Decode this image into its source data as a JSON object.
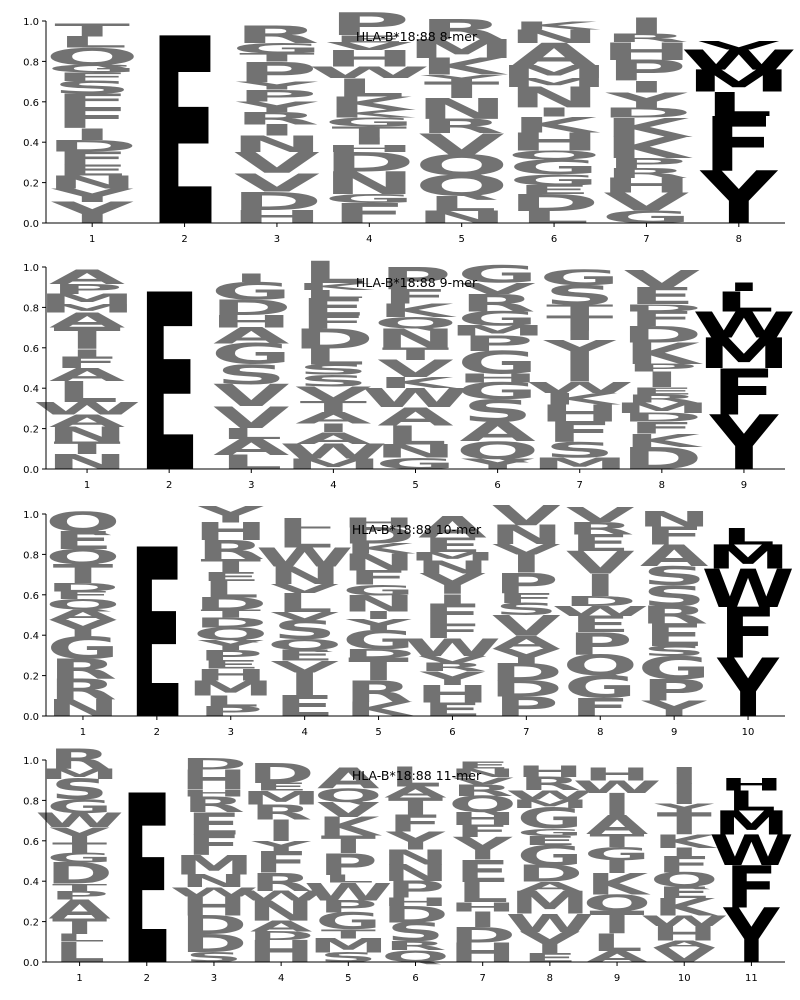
{
  "chart_data": [
    {
      "type": "sequence-logo",
      "title": "HLA-B*18:88 8-mer",
      "ylim": [
        0,
        1
      ],
      "yticks": [
        "0.0",
        "0.2",
        "0.4",
        "0.6",
        "0.8",
        "1.0"
      ],
      "positions": [
        "1",
        "2",
        "3",
        "4",
        "5",
        "6",
        "7",
        "8"
      ],
      "dominant": [
        {
          "position": 2,
          "letter": "E",
          "height": 0.93,
          "color": "#6b1f63"
        }
      ],
      "anchor": [
        {
          "letter": "Y",
          "height": 0.26,
          "color": "#b4d8d4"
        },
        {
          "letter": "F",
          "height": 0.27,
          "color": "#c3d3e6"
        },
        {
          "letter": "L",
          "height": 0.12,
          "color": "#d7e1ee"
        },
        {
          "letter": "M",
          "height": 0.11,
          "color": "#dfe6f1"
        },
        {
          "letter": "W",
          "height": 0.1,
          "color": "#e3e9f3"
        },
        {
          "letter": "V",
          "height": 0.04,
          "color": "#eef2f7"
        }
      ]
    },
    {
      "type": "sequence-logo",
      "title": "HLA-B*18:88 9-mer",
      "ylim": [
        0,
        1
      ],
      "yticks": [
        "0.0",
        "0.2",
        "0.4",
        "0.6",
        "0.8",
        "1.0"
      ],
      "positions": [
        "1",
        "2",
        "3",
        "4",
        "5",
        "6",
        "7",
        "8",
        "9"
      ],
      "dominant": [
        {
          "position": 2,
          "letter": "E",
          "height": 0.88,
          "color": "#6f2d6b"
        }
      ],
      "anchor": [
        {
          "letter": "Y",
          "height": 0.27,
          "color": "#b4d8d4"
        },
        {
          "letter": "F",
          "height": 0.23,
          "color": "#c6d5e8"
        },
        {
          "letter": "M",
          "height": 0.15,
          "color": "#d8e2ef"
        },
        {
          "letter": "W",
          "height": 0.13,
          "color": "#dde5f1"
        },
        {
          "letter": "L",
          "height": 0.1,
          "color": "#e3e9f3"
        },
        {
          "letter": "I",
          "height": 0.04,
          "color": "#eef2f7"
        }
      ]
    },
    {
      "type": "sequence-logo",
      "title": "HLA-B*18:88 10-mer",
      "ylim": [
        0,
        1
      ],
      "yticks": [
        "0.0",
        "0.2",
        "0.4",
        "0.6",
        "0.8",
        "1.0"
      ],
      "positions": [
        "1",
        "2",
        "3",
        "4",
        "5",
        "6",
        "7",
        "8",
        "9",
        "10"
      ],
      "dominant": [
        {
          "position": 2,
          "letter": "E",
          "height": 0.84,
          "color": "#702f6c"
        }
      ],
      "anchor": [
        {
          "letter": "Y",
          "height": 0.29,
          "color": "#b4d8d4"
        },
        {
          "letter": "F",
          "height": 0.25,
          "color": "#c6d5e8"
        },
        {
          "letter": "W",
          "height": 0.19,
          "color": "#d8e2ef"
        },
        {
          "letter": "M",
          "height": 0.12,
          "color": "#e0e7f2"
        },
        {
          "letter": "L",
          "height": 0.08,
          "color": "#e6ecf4"
        }
      ]
    },
    {
      "type": "sequence-logo",
      "title": "HLA-B*18:88 11-mer",
      "ylim": [
        0,
        1
      ],
      "yticks": [
        "0.0",
        "0.2",
        "0.4",
        "0.6",
        "0.8",
        "1.0"
      ],
      "positions": [
        "1",
        "2",
        "3",
        "4",
        "5",
        "6",
        "7",
        "8",
        "9",
        "10",
        "11"
      ],
      "dominant": [
        {
          "position": 2,
          "letter": "E",
          "height": 0.84,
          "color": "#6f2d6b"
        }
      ],
      "anchor": [
        {
          "letter": "Y",
          "height": 0.27,
          "color": "#bcdcd8"
        },
        {
          "letter": "F",
          "height": 0.21,
          "color": "#cbd9ea"
        },
        {
          "letter": "W",
          "height": 0.15,
          "color": "#dce4f0"
        },
        {
          "letter": "M",
          "height": 0.12,
          "color": "#e3e9f3"
        },
        {
          "letter": "L",
          "height": 0.1,
          "color": "#e9eef5"
        },
        {
          "letter": "H",
          "height": 0.06,
          "color": "#f0f3f8"
        }
      ]
    }
  ],
  "background_palette": [
    "#eef1f6",
    "#f3eef5",
    "#eef5ee",
    "#f6efef",
    "#f5f3e8",
    "#ecf4f3"
  ],
  "background_letters": [
    "A",
    "D",
    "E",
    "F",
    "H",
    "I",
    "K",
    "L",
    "M",
    "N",
    "P",
    "Q",
    "R",
    "S",
    "T",
    "V",
    "W",
    "Y",
    "G"
  ]
}
